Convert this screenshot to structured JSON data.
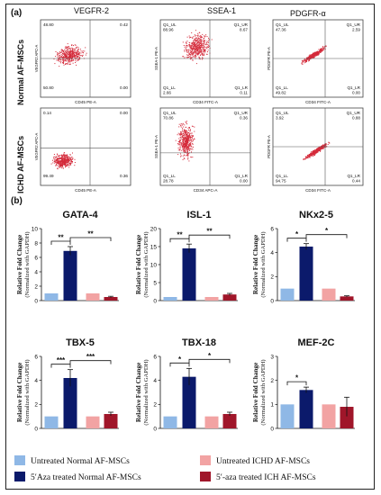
{
  "panel_a": {
    "label": "(a)",
    "column_headers": [
      "VEGFR-2",
      "SSEA-1",
      "PDGFR-α"
    ],
    "row_labels": [
      "Normal AF-MSCs",
      "ICHD AF-MSCs"
    ],
    "plots": [
      {
        "row": 0,
        "col": 0,
        "quadrants": {
          "UL": "48.80",
          "UR": "0.42",
          "LL": "50.80",
          "LR": "0.00"
        },
        "xlabel": "CD45 PE-A",
        "ylabel": "VEGFR2 APC-A",
        "color": "#d42a3a",
        "cloud": "left-mid"
      },
      {
        "row": 0,
        "col": 1,
        "quadrants": {
          "UL": "Q1_UL\n88.96",
          "UR": "Q1_UR\n8.67",
          "LL": "Q1_LL\n2.66",
          "LR": "Q1_LR\n0.11"
        },
        "xlabel": "CD34 FITC-A",
        "ylabel": "SSEA-1 PE-A",
        "color": "#d42a3a",
        "cloud": "upper-center"
      },
      {
        "row": 0,
        "col": 2,
        "quadrants": {
          "UL": "Q1_UL\n47.36",
          "UR": "Q1_UR\n2.59",
          "LL": "Q1_LL\n49.82",
          "LR": "Q1_LR\n0.00"
        },
        "xlabel": "CD34 FITC-A",
        "ylabel": "PDGFR PE-A",
        "color": "#d42a3a",
        "cloud": "diagonal"
      },
      {
        "row": 1,
        "col": 0,
        "quadrants": {
          "UL": "0.14",
          "UR": "0.00",
          "LL": "99.49",
          "LR": "0.36"
        },
        "xlabel": "CD45 PE-A",
        "ylabel": "VEGFR2 APC-A",
        "color": "#d42a3a",
        "cloud": "lower-left"
      },
      {
        "row": 1,
        "col": 1,
        "quadrants": {
          "UL": "Q1_UL\n70.86",
          "UR": "Q1_UR\n0.36",
          "LL": "Q1_LL\n28.78",
          "LR": "Q1_LR\n0.00"
        },
        "xlabel": "CD34 APC-A",
        "ylabel": "SSEA-1 PE-A",
        "color": "#d42a3a",
        "cloud": "left-tall"
      },
      {
        "row": 1,
        "col": 2,
        "quadrants": {
          "UL": "Q1_UL\n3.92",
          "UR": "Q1_UR\n0.88",
          "LL": "Q1_LL\n94.75",
          "LR": "Q1_LR\n0.44"
        },
        "xlabel": "CD34 FITC-A",
        "ylabel": "PDGFR PE-A",
        "color": "#d42a3a",
        "cloud": "diagonal-low"
      }
    ]
  },
  "panel_b": {
    "label": "(b)",
    "ylabel_line1": "Relative Fold Change",
    "ylabel_line2": "(Normalized with GAPDH)",
    "legend": {
      "items": [
        {
          "label": "Untreated Normal AF-MSCs",
          "color": "#8fb8e6"
        },
        {
          "label": "Untreated ICHD AF-MSCs",
          "color": "#f2a3a3"
        },
        {
          "label": "5′Aza treated Normal AF-MSCs",
          "color": "#0b1a6b"
        },
        {
          "label": "5′-aza treated ICH AF-MSCs",
          "color": "#a0162a"
        }
      ]
    }
  },
  "chart_data": [
    {
      "type": "bar",
      "title": "GATA-4",
      "categories": [
        "Untreated Normal AF-MSCs",
        "5′Aza treated Normal AF-MSCs",
        "Untreated ICHD AF-MSCs",
        "5′-aza treated ICH AF-MSCs"
      ],
      "values": [
        1,
        6.9,
        1,
        0.5
      ],
      "errors": [
        0,
        0.6,
        0,
        0.1
      ],
      "ylim": [
        0,
        10
      ],
      "yticks": [
        "0",
        "2",
        "4",
        "6",
        "8",
        "10"
      ],
      "annotations": [
        {
          "from": 0,
          "to": 1,
          "label": "**"
        },
        {
          "from": 1,
          "to": 3,
          "label": "**"
        }
      ]
    },
    {
      "type": "bar",
      "title": "ISL-1",
      "categories": [
        "Untreated Normal AF-MSCs",
        "5′Aza treated Normal AF-MSCs",
        "Untreated ICHD AF-MSCs",
        "5′-aza treated ICH AF-MSCs"
      ],
      "values": [
        1,
        14.5,
        1,
        1.7
      ],
      "errors": [
        0,
        1.2,
        0,
        0.3
      ],
      "ylim": [
        0,
        20
      ],
      "yticks": [
        "0",
        "5",
        "10",
        "15",
        "20"
      ],
      "annotations": [
        {
          "from": 0,
          "to": 1,
          "label": "**"
        },
        {
          "from": 1,
          "to": 3,
          "label": "**"
        }
      ]
    },
    {
      "type": "bar",
      "title": "NKx2-5",
      "categories": [
        "Untreated Normal AF-MSCs",
        "5′Aza treated Normal AF-MSCs",
        "Untreated ICHD AF-MSCs",
        "5′-aza treated ICH AF-MSCs"
      ],
      "values": [
        1,
        4.5,
        1,
        0.35
      ],
      "errors": [
        0,
        0.25,
        0,
        0.05
      ],
      "ylim": [
        0,
        6
      ],
      "yticks": [
        "0",
        "2",
        "4",
        "6"
      ],
      "annotations": [
        {
          "from": 0,
          "to": 1,
          "label": "*"
        },
        {
          "from": 1,
          "to": 3,
          "label": "*"
        }
      ]
    },
    {
      "type": "bar",
      "title": "TBX-5",
      "categories": [
        "Untreated Normal AF-MSCs",
        "5′Aza treated Normal AF-MSCs",
        "Untreated ICHD AF-MSCs",
        "5′-aza treated ICH AF-MSCs"
      ],
      "values": [
        1,
        4.2,
        1,
        1.2
      ],
      "errors": [
        0,
        0.7,
        0,
        0.15
      ],
      "ylim": [
        0,
        6
      ],
      "yticks": [
        "0",
        "2",
        "4",
        "6"
      ],
      "annotations": [
        {
          "from": 0,
          "to": 1,
          "label": "***"
        },
        {
          "from": 1,
          "to": 3,
          "label": "***"
        }
      ]
    },
    {
      "type": "bar",
      "title": "TBX-18",
      "categories": [
        "Untreated Normal AF-MSCs",
        "5′Aza treated Normal AF-MSCs",
        "Untreated ICHD AF-MSCs",
        "5′-aza treated ICH AF-MSCs"
      ],
      "values": [
        1,
        4.3,
        1,
        1.2
      ],
      "errors": [
        0,
        0.7,
        0,
        0.15
      ],
      "ylim": [
        0,
        6
      ],
      "yticks": [
        "0",
        "2",
        "4",
        "6"
      ],
      "annotations": [
        {
          "from": 0,
          "to": 1,
          "label": "*"
        },
        {
          "from": 1,
          "to": 3,
          "label": "*"
        }
      ]
    },
    {
      "type": "bar",
      "title": "MEF-2C",
      "categories": [
        "Untreated Normal AF-MSCs",
        "5′Aza treated Normal AF-MSCs",
        "Untreated ICHD AF-MSCs",
        "5′-aza treated ICH AF-MSCs"
      ],
      "values": [
        1,
        1.6,
        1,
        0.9
      ],
      "errors": [
        0,
        0.12,
        0,
        0.4
      ],
      "ylim": [
        0,
        3
      ],
      "yticks": [
        "0",
        "1",
        "2",
        "3"
      ],
      "annotations": [
        {
          "from": 0,
          "to": 1,
          "label": "*"
        }
      ]
    }
  ]
}
